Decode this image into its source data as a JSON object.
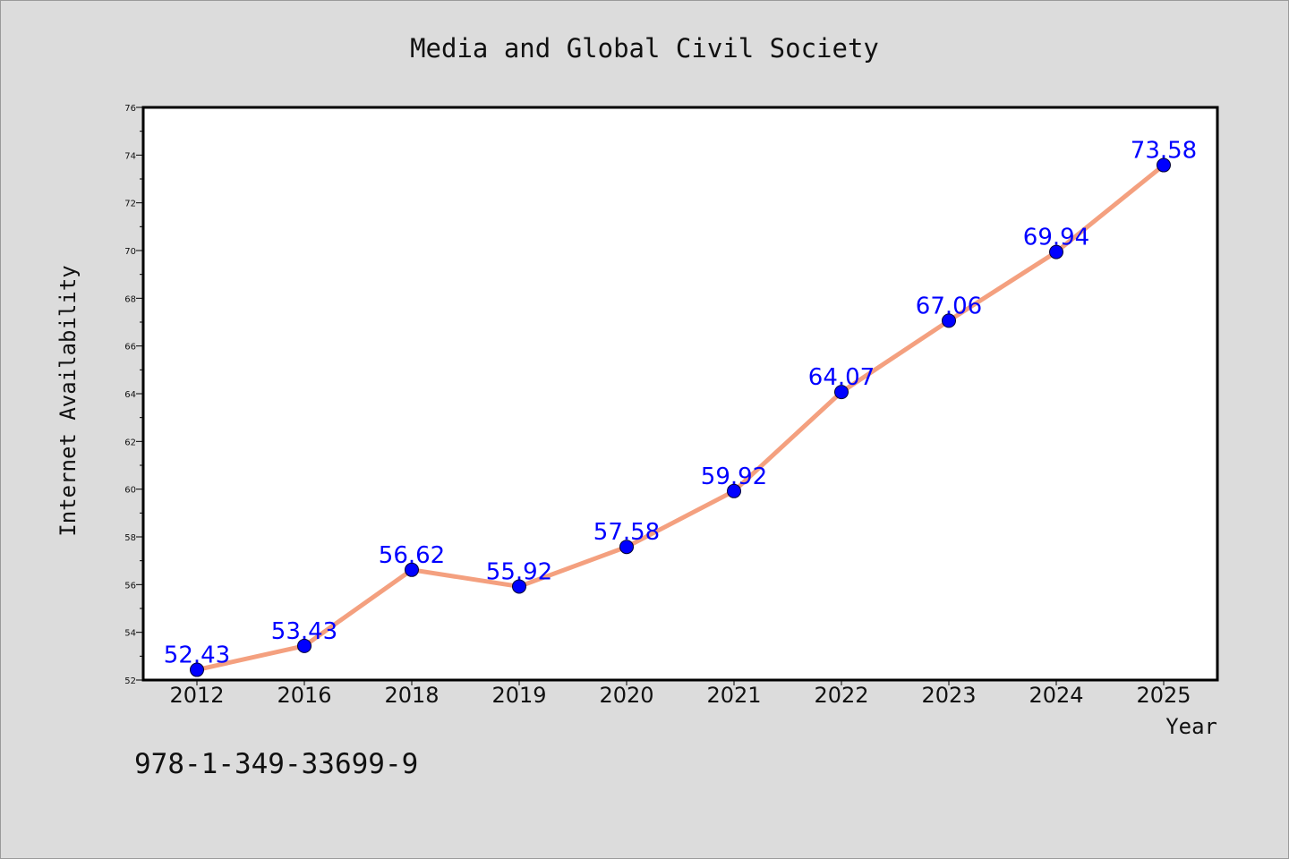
{
  "chart_data": {
    "type": "line",
    "title": "Media and Global Civil Society",
    "xlabel": "Year",
    "ylabel": "Internet Availability",
    "categories": [
      "2012",
      "2016",
      "2018",
      "2019",
      "2020",
      "2021",
      "2022",
      "2023",
      "2024",
      "2025"
    ],
    "values": [
      52.43,
      53.43,
      56.62,
      55.92,
      57.58,
      59.92,
      64.07,
      67.06,
      69.94,
      73.58
    ],
    "ylim": [
      52,
      76
    ],
    "yticks": [
      52,
      54,
      56,
      58,
      60,
      62,
      64,
      66,
      68,
      70,
      72,
      74,
      76
    ],
    "grid": false,
    "line_color": "#f4a07f",
    "marker_color": "#0000ff",
    "data_label_color": "#0000ff"
  },
  "footer": {
    "text": "978-1-349-33699-9"
  },
  "colors": {
    "background": "#dcdcdc",
    "plot_background": "#ffffff"
  }
}
